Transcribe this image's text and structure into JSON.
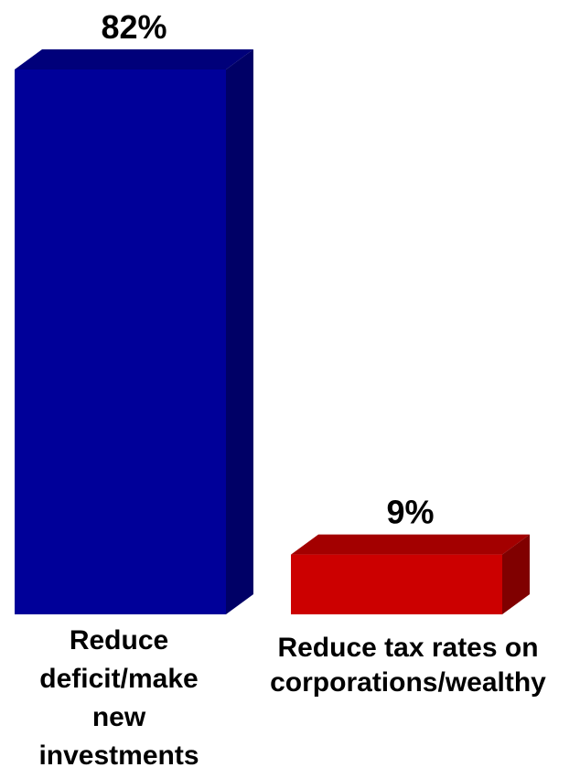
{
  "chart_data": {
    "type": "bar",
    "categories": [
      "Reduce deficit/make new investments",
      "Reduce tax rates on corporations/wealthy"
    ],
    "values": [
      82,
      9
    ],
    "value_labels": [
      "82%",
      "9%"
    ],
    "title": "",
    "xlabel": "",
    "ylabel": "",
    "ylim": [
      0,
      82
    ],
    "grid": false,
    "legend": "none",
    "style": "3d",
    "colors": {
      "bar_0": {
        "front": "#000099",
        "top": "#00007a",
        "side": "#000066"
      },
      "bar_1": {
        "front": "#cc0000",
        "top": "#a30000",
        "side": "#800000"
      }
    }
  },
  "labels": {
    "category_0_lines": [
      "Reduce",
      "deficit/make",
      "new",
      "investments"
    ],
    "category_1_lines": [
      "Reduce tax rates on",
      "corporations/wealthy"
    ]
  }
}
